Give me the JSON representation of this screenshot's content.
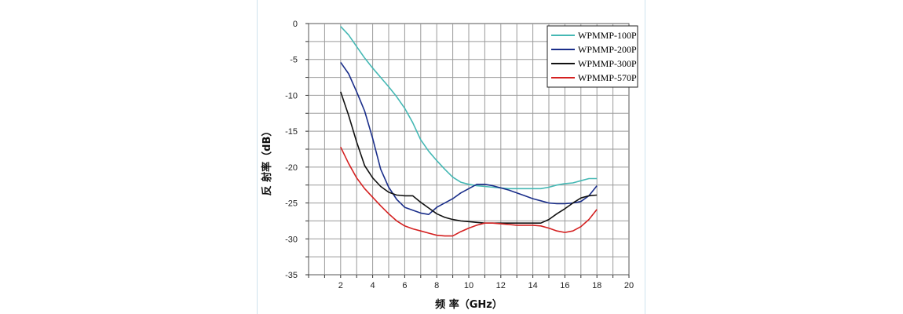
{
  "chart_data": {
    "type": "line",
    "title": "",
    "xlabel": "频 率（GHz）",
    "ylabel": "反 射率（dB）",
    "xlim": [
      0,
      20
    ],
    "ylim": [
      -35,
      0
    ],
    "x_ticks": [
      "2",
      "4",
      "6",
      "8",
      "10",
      "12",
      "14",
      "16",
      "18",
      "20"
    ],
    "y_ticks": [
      "0",
      "-5",
      "-10",
      "-15",
      "-20",
      "-25",
      "-30",
      "-35"
    ],
    "grid": true,
    "legend_position": "top-right",
    "series": [
      {
        "name": "WPMMP-100P",
        "color": "#45b8b4",
        "x": [
          2,
          2.5,
          3,
          3.5,
          4,
          4.5,
          5,
          5.5,
          6,
          6.5,
          7,
          7.5,
          8,
          8.5,
          9,
          9.5,
          10,
          10.5,
          11,
          11.5,
          12,
          12.5,
          13,
          13.5,
          14,
          14.5,
          15,
          15.5,
          16,
          16.5,
          17,
          17.5,
          18
        ],
        "y": [
          -0.4,
          -1.6,
          -3.2,
          -4.8,
          -6.2,
          -7.5,
          -8.8,
          -10.2,
          -11.8,
          -13.8,
          -16.2,
          -17.8,
          -19.1,
          -20.3,
          -21.4,
          -22.1,
          -22.4,
          -22.6,
          -22.7,
          -22.8,
          -22.9,
          -23.0,
          -23.0,
          -23.0,
          -23.0,
          -23.0,
          -22.8,
          -22.5,
          -22.3,
          -22.2,
          -21.9,
          -21.6,
          -21.6
        ]
      },
      {
        "name": "WPMMP-200P",
        "color": "#1a2e8a",
        "x": [
          2,
          2.5,
          3,
          3.5,
          4,
          4.5,
          5,
          5.5,
          6,
          6.5,
          7,
          7.5,
          8,
          8.5,
          9,
          9.5,
          10,
          10.5,
          11,
          11.5,
          12,
          12.5,
          13,
          13.5,
          14,
          14.5,
          15,
          15.5,
          16,
          16.5,
          17,
          17.5,
          18
        ],
        "y": [
          -5.4,
          -7.0,
          -9.5,
          -12.2,
          -16.0,
          -20.3,
          -22.8,
          -24.5,
          -25.6,
          -26.0,
          -26.4,
          -26.6,
          -25.6,
          -25.0,
          -24.4,
          -23.6,
          -23.0,
          -22.4,
          -22.4,
          -22.6,
          -22.9,
          -23.2,
          -23.6,
          -24.0,
          -24.4,
          -24.7,
          -25.0,
          -25.1,
          -25.1,
          -25.0,
          -24.8,
          -24.0,
          -22.6
        ]
      },
      {
        "name": "WPMMP-300P",
        "color": "#111111",
        "x": [
          2,
          2.5,
          3,
          3.5,
          4,
          4.5,
          5,
          5.5,
          6,
          6.5,
          7,
          7.5,
          8,
          8.5,
          9,
          9.5,
          10,
          10.5,
          11,
          11.5,
          12,
          12.5,
          13,
          13.5,
          14,
          14.5,
          15,
          15.5,
          16,
          16.5,
          17,
          17.5,
          18
        ],
        "y": [
          -9.5,
          -12.8,
          -16.5,
          -19.8,
          -21.5,
          -22.7,
          -23.5,
          -23.9,
          -24.0,
          -24.0,
          -24.9,
          -25.7,
          -26.5,
          -27.0,
          -27.3,
          -27.5,
          -27.6,
          -27.7,
          -27.8,
          -27.8,
          -27.8,
          -27.8,
          -27.8,
          -27.8,
          -27.8,
          -27.8,
          -27.3,
          -26.5,
          -25.8,
          -25.0,
          -24.3,
          -24.0,
          -23.9
        ]
      },
      {
        "name": "WPMMP-570P",
        "color": "#d42020",
        "x": [
          2,
          2.5,
          3,
          3.5,
          4,
          4.5,
          5,
          5.5,
          6,
          6.5,
          7,
          7.5,
          8,
          8.5,
          9,
          9.5,
          10,
          10.5,
          11,
          11.5,
          12,
          12.5,
          13,
          13.5,
          14,
          14.5,
          15,
          15.5,
          16,
          16.5,
          17,
          17.5,
          18
        ],
        "y": [
          -17.2,
          -19.5,
          -21.5,
          -23.0,
          -24.2,
          -25.4,
          -26.5,
          -27.5,
          -28.2,
          -28.6,
          -28.9,
          -29.2,
          -29.5,
          -29.6,
          -29.6,
          -29.0,
          -28.5,
          -28.1,
          -27.8,
          -27.8,
          -27.9,
          -28.0,
          -28.1,
          -28.1,
          -28.1,
          -28.2,
          -28.5,
          -28.9,
          -29.1,
          -28.9,
          -28.3,
          -27.3,
          -25.9
        ]
      }
    ]
  }
}
